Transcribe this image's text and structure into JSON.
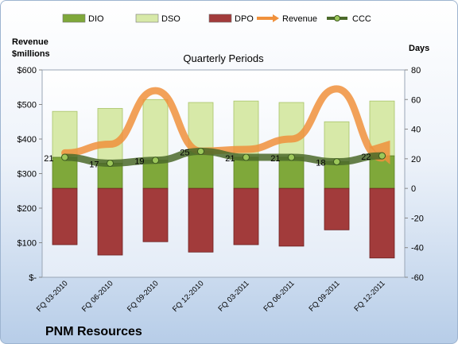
{
  "company": "PNM Resources",
  "chart_data": {
    "type": "bar",
    "title": "Quarterly Periods",
    "left_axis": {
      "label_line1": "Revenue",
      "label_line2": "$millions",
      "ylim": [
        0,
        600
      ],
      "ticks": [
        "$-",
        "$100",
        "$200",
        "$300",
        "$400",
        "$500",
        "$600"
      ]
    },
    "right_axis": {
      "label": "Days",
      "ylim": [
        -60,
        80
      ],
      "ticks": [
        "-60",
        "-40",
        "-20",
        "0",
        "20",
        "40",
        "60",
        "80"
      ]
    },
    "categories": [
      "FQ 03-2010",
      "FQ 06-2010",
      "FQ 09-2010",
      "FQ 12-2010",
      "FQ 03-2011",
      "FQ 06-2011",
      "FQ 09-2011",
      "FQ 12-2011"
    ],
    "series": [
      {
        "name": "DIO",
        "type": "stacked-bar",
        "axis": "right",
        "color": "#7fa83a",
        "values": [
          52,
          54,
          60,
          58,
          59,
          58,
          45,
          59
        ]
      },
      {
        "name": "DSO",
        "type": "stacked-bar",
        "axis": "right",
        "color": "#d7e9a8",
        "values": [
          52,
          54,
          60,
          58,
          59,
          58,
          45,
          59
        ]
      },
      {
        "name": "DPO",
        "type": "bar",
        "axis": "right",
        "color": "#a23b3b",
        "values": [
          -38,
          -45,
          -36,
          -43,
          -38,
          -39,
          -28,
          -47
        ]
      },
      {
        "name": "Revenue",
        "type": "line",
        "axis": "left",
        "color": "#f0913c",
        "values": [
          360,
          385,
          540,
          365,
          370,
          400,
          545,
          345
        ]
      },
      {
        "name": "CCC",
        "type": "line",
        "axis": "right",
        "color": "#4b6a2a",
        "values": [
          21,
          17,
          19,
          25,
          21,
          21,
          18,
          22
        ]
      }
    ]
  }
}
